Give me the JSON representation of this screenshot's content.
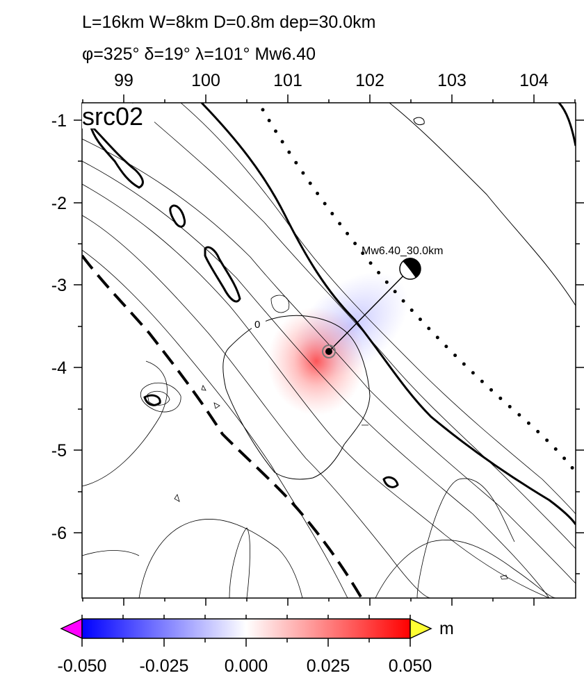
{
  "header": {
    "line1": "L=16km W=8km D=0.8m dep=30.0km",
    "line2": "φ=325° δ=19° λ=101° Mw6.40"
  },
  "map": {
    "panel_label": "src02",
    "x_ticks": [
      "99",
      "100",
      "101",
      "102",
      "103",
      "104"
    ],
    "y_ticks": [
      "-1",
      "-2",
      "-3",
      "-4",
      "-5",
      "-6"
    ],
    "contour_label": "0",
    "event_label": "Mw6.40_30.0km",
    "colors": {
      "uplift": "#ff0000",
      "subsidence": "#0000ff",
      "frame": "#000000"
    }
  },
  "colorbar": {
    "unit": "m",
    "ticks": [
      "-0.050",
      "-0.025",
      "0.000",
      "0.025",
      "0.050"
    ],
    "colors": {
      "low_end": "#0000ff",
      "mid": "#ffffff",
      "high_end": "#ff0000",
      "under": "#ff00ff",
      "over": "#ffff33"
    }
  }
}
